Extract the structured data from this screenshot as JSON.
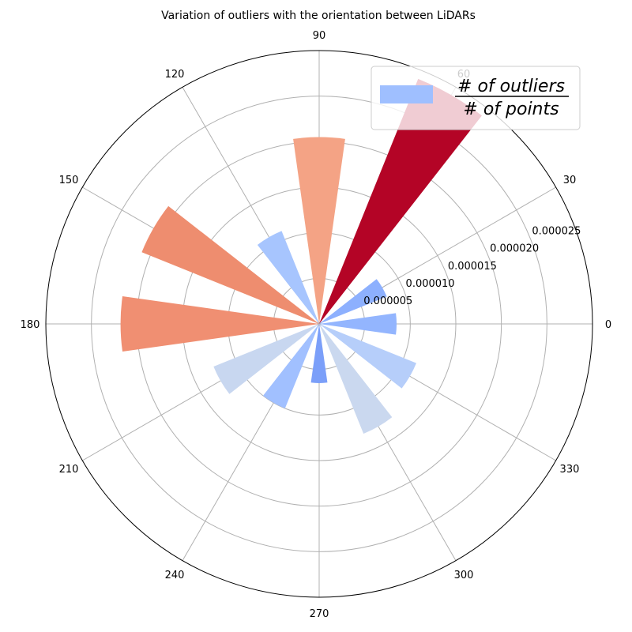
{
  "chart_data": {
    "type": "bar",
    "subtype": "polar",
    "title": "Variation of outliers with the orientation between LiDARs",
    "theta_unit": "degrees",
    "theta_ticks": [
      0,
      30,
      60,
      90,
      120,
      150,
      180,
      210,
      240,
      270,
      300,
      330
    ],
    "r_ticks": [
      "0.000005",
      "0.000010",
      "0.000015",
      "0.000020",
      "0.000025"
    ],
    "r_tick_values": [
      5e-06,
      1e-05,
      1.5e-05,
      2e-05,
      2.5e-05
    ],
    "rlim": [
      0,
      3e-05
    ],
    "grid": true,
    "legend": {
      "placement": "top-right",
      "numerator": "# of outliers",
      "denominator": "# of points"
    },
    "bars": [
      {
        "theta": 0,
        "value": 8.5e-06,
        "color": "#93b5fe"
      },
      {
        "theta": 30,
        "value": 8e-06,
        "color": "#8db0fe"
      },
      {
        "theta": 60,
        "value": 2.9e-05,
        "color": "#b40426"
      },
      {
        "theta": 90,
        "value": 2.05e-05,
        "color": "#f4a385"
      },
      {
        "theta": 120,
        "value": 1.1e-05,
        "color": "#a7c5fe"
      },
      {
        "theta": 150,
        "value": 2.1e-05,
        "color": "#ee8d6f"
      },
      {
        "theta": 180,
        "value": 2.18e-05,
        "color": "#f08f72"
      },
      {
        "theta": 210,
        "value": 1.25e-05,
        "color": "#c8d7f0"
      },
      {
        "theta": 240,
        "value": 1e-05,
        "color": "#a1c0ff"
      },
      {
        "theta": 270,
        "value": 6.5e-06,
        "color": "#7b9ff9"
      },
      {
        "theta": 300,
        "value": 1.3e-05,
        "color": "#cad8ef"
      },
      {
        "theta": 330,
        "value": 1.15e-05,
        "color": "#b6cefa"
      }
    ]
  }
}
